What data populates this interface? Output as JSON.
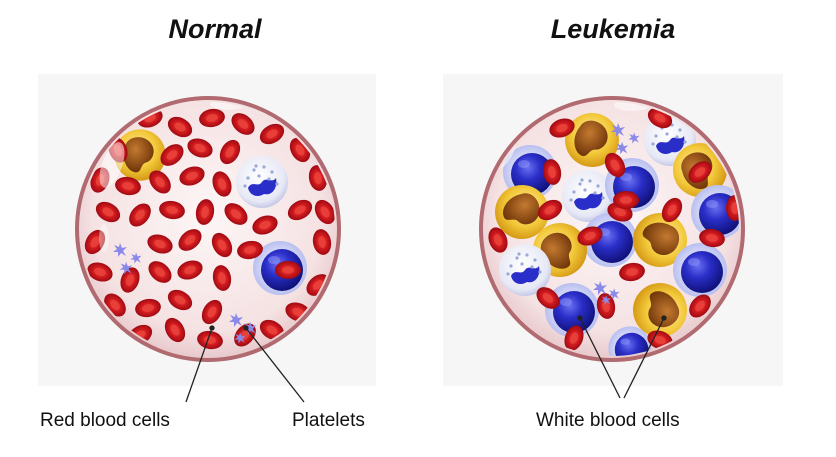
{
  "panels": {
    "normal": {
      "title": "Normal"
    },
    "leukemia": {
      "title": "Leukemia"
    }
  },
  "labels": {
    "red_blood_cells": "Red blood cells",
    "platelets": "Platelets",
    "white_blood_cells": "White blood cells"
  },
  "colors": {
    "red_cell": "#c8101a",
    "red_cell_center": "#e83a36",
    "blue_nucleus": "#2428b8",
    "yellow_cell": "#f3c93a",
    "brown_nucleus": "#9a5218",
    "platelet": "#8a88e8",
    "plasma": "#f7e9ea",
    "rim": "#b06a70"
  }
}
